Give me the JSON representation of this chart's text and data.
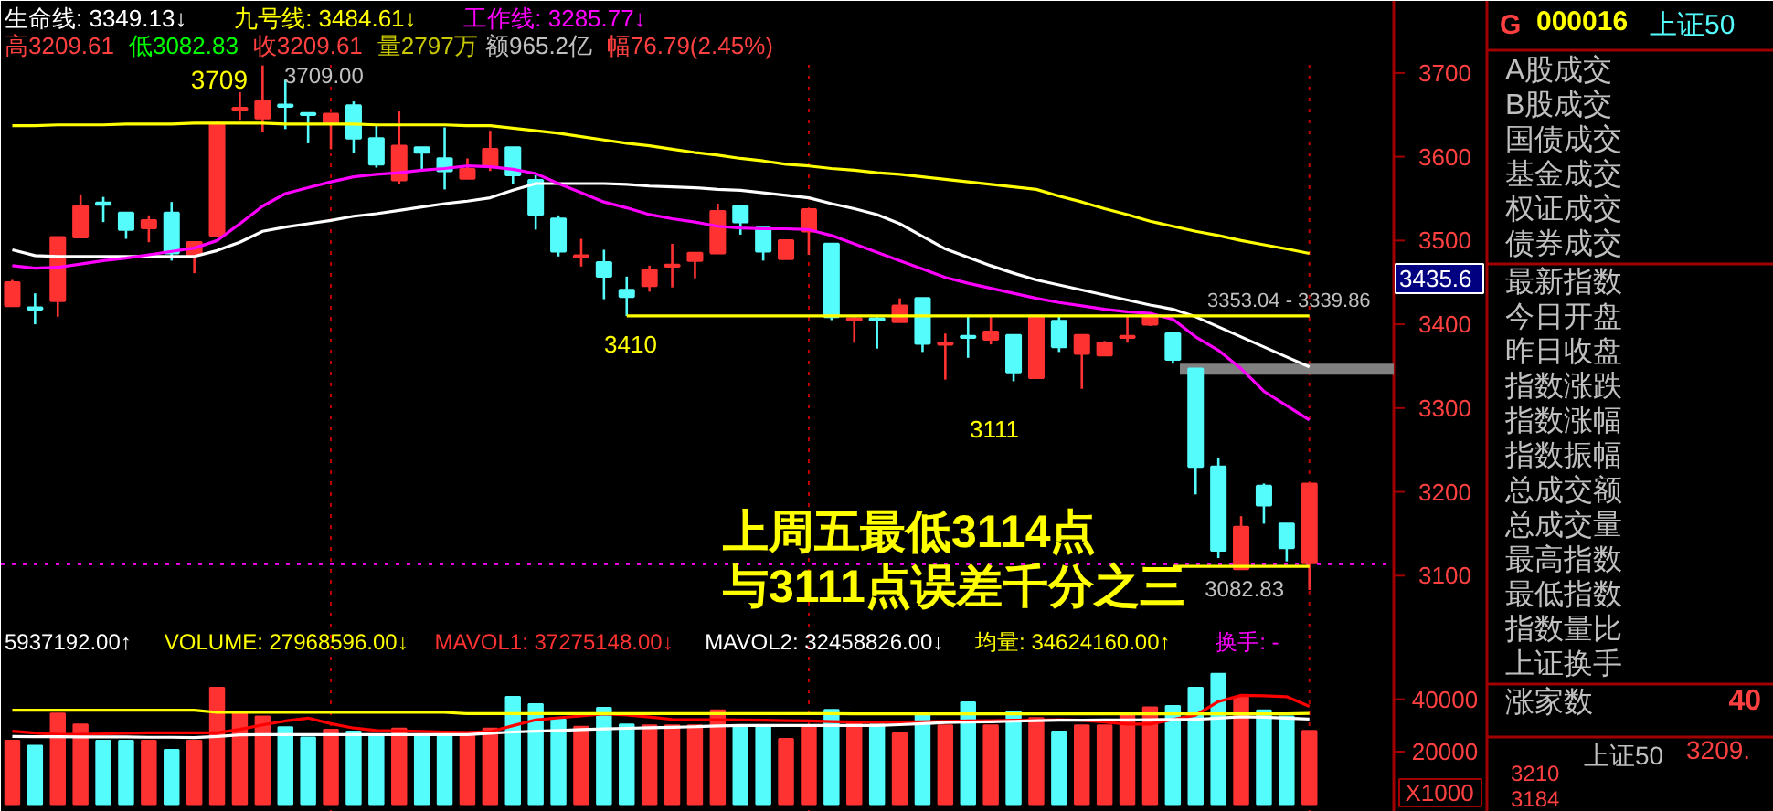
{
  "chart_data": {
    "type": "candlestick",
    "categories": [
      null,
      null,
      null,
      null,
      null,
      null,
      null,
      null,
      null,
      null,
      null,
      null,
      null,
      null,
      null,
      null,
      null,
      null,
      null,
      null,
      null,
      null,
      null,
      null,
      null,
      null,
      null,
      null,
      null,
      null,
      null,
      null,
      null,
      null,
      null,
      null,
      null,
      null,
      null,
      null,
      null,
      null,
      null,
      null,
      null,
      null,
      null,
      null,
      null,
      null,
      null,
      null,
      null,
      null,
      null,
      null,
      null,
      null
    ],
    "ohlc": [
      [
        3422,
        3453,
        3422,
        3450
      ],
      [
        3420,
        3437,
        3400,
        3418
      ],
      [
        3428,
        3504,
        3409,
        3504
      ],
      [
        3504,
        3555,
        3504,
        3541
      ],
      [
        3545,
        3552,
        3522,
        3543
      ],
      [
        3533,
        3533,
        3502,
        3513
      ],
      [
        3515,
        3530,
        3498,
        3524
      ],
      [
        3533,
        3546,
        3476,
        3485
      ],
      [
        3483,
        3498,
        3461,
        3498
      ],
      [
        3506,
        3642,
        3506,
        3640
      ],
      [
        3656,
        3677,
        3644,
        3658
      ],
      [
        3646,
        3709,
        3629,
        3666
      ],
      [
        3662,
        3692,
        3633,
        3660
      ],
      [
        3652,
        3652,
        3616,
        3650
      ],
      [
        3640,
        3651,
        3609,
        3651
      ],
      [
        3661,
        3666,
        3605,
        3622
      ],
      [
        3622,
        3637,
        3587,
        3591
      ],
      [
        3572,
        3655,
        3568,
        3613
      ],
      [
        3611,
        3611,
        3583,
        3605
      ],
      [
        3598,
        3635,
        3561,
        3583
      ],
      [
        3574,
        3598,
        3574,
        3585
      ],
      [
        3589,
        3631,
        3583,
        3609
      ],
      [
        3611,
        3611,
        3568,
        3578
      ],
      [
        3572,
        3578,
        3513,
        3531
      ],
      [
        3526,
        3530,
        3481,
        3487
      ],
      [
        3480,
        3502,
        3469,
        3482
      ],
      [
        3474,
        3489,
        3430,
        3457
      ],
      [
        3441,
        3457,
        3410,
        3433
      ],
      [
        3446,
        3470,
        3439,
        3465
      ],
      [
        3469,
        3496,
        3444,
        3471
      ],
      [
        3476,
        3485,
        3455,
        3485
      ],
      [
        3485,
        3544,
        3485,
        3535
      ],
      [
        3541,
        3541,
        3507,
        3522
      ],
      [
        3515,
        3515,
        3476,
        3487
      ],
      [
        3478,
        3500,
        3478,
        3500
      ],
      [
        3511,
        3537,
        3483,
        3537
      ],
      [
        3496,
        3496,
        3405,
        3409
      ],
      [
        3405,
        3410,
        3378,
        3407
      ],
      [
        3407,
        3410,
        3371,
        3405
      ],
      [
        3403,
        3431,
        3403,
        3422
      ],
      [
        3431,
        3431,
        3367,
        3377
      ],
      [
        3376,
        3389,
        3334,
        3378
      ],
      [
        3386,
        3410,
        3360,
        3384
      ],
      [
        3382,
        3409,
        3376,
        3391
      ],
      [
        3387,
        3387,
        3332,
        3343
      ],
      [
        3336,
        3410,
        3336,
        3410
      ],
      [
        3404,
        3410,
        3367,
        3373
      ],
      [
        3365,
        3387,
        3323,
        3387
      ],
      [
        3363,
        3380,
        3363,
        3378
      ],
      [
        3384,
        3409,
        3378,
        3386
      ],
      [
        3400,
        3411,
        3398,
        3409
      ],
      [
        3389,
        3389,
        3353,
        3358
      ],
      [
        3347,
        3347,
        3197,
        3230
      ],
      [
        3230,
        3241,
        3121,
        3130
      ],
      [
        3108,
        3171,
        3108,
        3158
      ],
      [
        3207,
        3210,
        3162,
        3184
      ],
      [
        3162,
        3162,
        3117,
        3133
      ],
      [
        3115,
        3209.61,
        3082.83,
        3209.61
      ]
    ],
    "series": [
      {
        "type": "line",
        "color": "#ffffff",
        "values": [
          3489,
          3482,
          3481,
          3481,
          3481,
          3481,
          3481,
          3481,
          3481,
          3488,
          3498,
          3511,
          3516,
          3520,
          3524,
          3529,
          3532,
          3536,
          3540,
          3544,
          3547,
          3551,
          3560,
          3568,
          3568,
          3568,
          3568,
          3567,
          3565,
          3564,
          3563,
          3561,
          3560,
          3557,
          3554,
          3551,
          3544,
          3538,
          3531,
          3520,
          3505,
          3490,
          3480,
          3470,
          3461,
          3453,
          3447,
          3441,
          3435,
          3429,
          3423,
          3418,
          3409,
          3397,
          3385,
          3373,
          3361,
          3349.13
        ]
      },
      {
        "type": "line",
        "color": "#ff00ff",
        "values": [
          3470,
          3467,
          3468,
          3472,
          3476,
          3479,
          3483,
          3487,
          3491,
          3500,
          3520,
          3541,
          3556,
          3563,
          3570,
          3576,
          3579,
          3581,
          3584,
          3586,
          3589,
          3588,
          3585,
          3580,
          3568,
          3557,
          3546,
          3539,
          3531,
          3526,
          3522,
          3517,
          3515,
          3514,
          3514,
          3513,
          3506,
          3496,
          3486,
          3476,
          3466,
          3456,
          3449,
          3443,
          3437,
          3431,
          3426,
          3422,
          3418,
          3415,
          3413,
          3406,
          3385,
          3369,
          3347,
          3320,
          3303,
          3285.77
        ]
      },
      {
        "type": "line",
        "color": "#ffff00",
        "values": [
          3637,
          3637,
          3638,
          3638,
          3638,
          3639,
          3639,
          3639,
          3640,
          3640,
          3640,
          3640,
          3639,
          3639,
          3639,
          3639,
          3638,
          3638,
          3638,
          3638,
          3637,
          3637,
          3634,
          3631,
          3628,
          3624,
          3620,
          3616,
          3613,
          3609,
          3605,
          3602,
          3598,
          3595,
          3591,
          3589,
          3586,
          3584,
          3581,
          3579,
          3576,
          3573,
          3570,
          3567,
          3564,
          3561,
          3553,
          3546,
          3538,
          3531,
          3523,
          3517,
          3511,
          3506,
          3500,
          3495,
          3490,
          3484.61
        ]
      },
      {
        "type": "line",
        "color": "#ffff00",
        "values": [
          null,
          null,
          null,
          null,
          null,
          null,
          null,
          null,
          null,
          null,
          null,
          null,
          null,
          null,
          null,
          null,
          null,
          null,
          null,
          null,
          null,
          null,
          null,
          null,
          null,
          null,
          null,
          3410,
          3410,
          3410,
          3410,
          3410,
          3410,
          3410,
          3410,
          3410,
          3410,
          3410,
          3410,
          3410,
          3410,
          3410,
          3410,
          3410,
          3410,
          3410,
          3410,
          3410,
          3410,
          3410,
          3410,
          3410,
          3410,
          3410,
          3410,
          3410,
          3410,
          3410
        ]
      },
      {
        "type": "line",
        "color": "#ffff00",
        "values": [
          null,
          null,
          null,
          null,
          null,
          null,
          null,
          null,
          null,
          null,
          null,
          null,
          null,
          null,
          null,
          null,
          null,
          null,
          null,
          null,
          null,
          null,
          null,
          null,
          null,
          null,
          null,
          null,
          null,
          null,
          null,
          null,
          null,
          null,
          null,
          null,
          null,
          null,
          null,
          null,
          null,
          null,
          null,
          null,
          null,
          null,
          null,
          null,
          null,
          null,
          null,
          3111,
          3111,
          3111,
          3111,
          3111,
          3111,
          3111
        ]
      },
      {
        "type": "bar",
        "axis": "y2",
        "values": [
          24200,
          22300,
          34600,
          30400,
          24200,
          24200,
          24200,
          20700,
          24200,
          44400,
          34600,
          33400,
          29300,
          25400,
          28400,
          27700,
          26500,
          28800,
          26500,
          26500,
          26500,
          28800,
          40900,
          38100,
          32300,
          29500,
          36700,
          30400,
          30000,
          30000,
          30000,
          35800,
          30000,
          30000,
          24900,
          30000,
          36000,
          31100,
          30400,
          27000,
          34100,
          30000,
          38800,
          30000,
          35300,
          32800,
          27700,
          30000,
          30000,
          33900,
          36900,
          37400,
          44400,
          49700,
          40900,
          35800,
          33400,
          27969
        ],
        "colors": [
          "#ff3232",
          "#54fcfc",
          "#ff3232",
          "#ff3232",
          "#54fcfc",
          "#54fcfc",
          "#ff3232",
          "#54fcfc",
          "#ff3232",
          "#ff3232",
          "#ff3232",
          "#ff3232",
          "#54fcfc",
          "#54fcfc",
          "#ff3232",
          "#54fcfc",
          "#54fcfc",
          "#ff3232",
          "#54fcfc",
          "#54fcfc",
          "#ff3232",
          "#ff3232",
          "#54fcfc",
          "#54fcfc",
          "#54fcfc",
          "#ff3232",
          "#54fcfc",
          "#54fcfc",
          "#ff3232",
          "#ff3232",
          "#ff3232",
          "#ff3232",
          "#54fcfc",
          "#54fcfc",
          "#ff3232",
          "#ff3232",
          "#54fcfc",
          "#ff3232",
          "#54fcfc",
          "#ff3232",
          "#54fcfc",
          "#ff3232",
          "#54fcfc",
          "#ff3232",
          "#54fcfc",
          "#ff3232",
          "#54fcfc",
          "#ff3232",
          "#ff3232",
          "#ff3232",
          "#ff3232",
          "#54fcfc",
          "#54fcfc",
          "#54fcfc",
          "#ff3232",
          "#54fcfc",
          "#54fcfc",
          "#ff3232"
        ]
      },
      {
        "type": "line",
        "axis": "y2",
        "color": "#ff0000",
        "values": [
          27800,
          27100,
          26600,
          26600,
          26800,
          27000,
          27200,
          27200,
          27200,
          27200,
          28500,
          30200,
          31700,
          32800,
          30700,
          29000,
          28100,
          27900,
          27700,
          27500,
          27400,
          27600,
          29900,
          32100,
          32900,
          33600,
          34400,
          34000,
          33200,
          32300,
          32200,
          32200,
          32100,
          32000,
          31800,
          31700,
          31500,
          31300,
          31200,
          31300,
          31400,
          31600,
          31700,
          31800,
          32000,
          32100,
          32200,
          32000,
          31300,
          30500,
          30500,
          32300,
          33900,
          39100,
          41500,
          41300,
          41000,
          37275
        ]
      },
      {
        "type": "line",
        "axis": "y2",
        "color": "#ffffff",
        "values": [
          25800,
          25700,
          25700,
          25600,
          25600,
          25600,
          25500,
          25500,
          25400,
          25800,
          26400,
          26500,
          26500,
          26500,
          26500,
          26500,
          26500,
          26500,
          26500,
          26500,
          26500,
          27000,
          27500,
          27800,
          28100,
          28400,
          28700,
          28900,
          29100,
          29300,
          29500,
          29800,
          30000,
          30000,
          30000,
          30000,
          30000,
          30000,
          30000,
          30300,
          30700,
          31100,
          31300,
          31400,
          31600,
          31800,
          32000,
          32000,
          32100,
          32100,
          32200,
          32300,
          32300,
          32800,
          33300,
          33100,
          32800,
          32459
        ]
      },
      {
        "type": "line",
        "axis": "y2",
        "color": "#ffff00",
        "values": [
          35800,
          35800,
          35800,
          35800,
          35800,
          35800,
          35800,
          35800,
          35800,
          35000,
          35000,
          35000,
          35000,
          35000,
          35000,
          35000,
          35000,
          35000,
          35000,
          35000,
          34500,
          34500,
          34500,
          34500,
          34500,
          34500,
          34500,
          34500,
          34500,
          34500,
          34500,
          34500,
          34500,
          34500,
          34500,
          34500,
          34500,
          34400,
          34400,
          34400,
          34400,
          34400,
          34400,
          34400,
          34400,
          34400,
          34400,
          34400,
          34400,
          34400,
          34400,
          34400,
          34400,
          34400,
          34400,
          34400,
          34400,
          34624
        ]
      }
    ],
    "ylim": [
      2818,
      3786
    ],
    "yticks": [
      3100,
      3200,
      3300,
      3400,
      3500,
      3600,
      3700
    ],
    "y2lim": [
      -3000,
      306560
    ],
    "y2ticks": [
      20000,
      40000
    ],
    "grid": "x",
    "ref_lines": [
      {
        "axis": "y",
        "value": 3114,
        "color": "#ff00ff",
        "line_style": "dotted"
      }
    ],
    "bands": [
      {
        "axis": "y",
        "from": 3339.86,
        "to": 3353.04,
        "color": "#808080"
      }
    ],
    "annotations": [
      "生命线: 3349.13↓",
      "九号线: 3484.61↓",
      "工作线: 3285.77↓",
      "高3209.61",
      "低3082.83",
      "收3209.61",
      "量2797万",
      "额965.2亿",
      "幅76.79(2.45%)",
      "3709",
      "3709.00",
      {
        "text": "3410",
        "y": 3410
      },
      "3111",
      {
        "text": "3353.04 - 3339.86",
        "y": 3353.04
      },
      "3082.83",
      "上周五最低3114点",
      "与3111点误差千分之三",
      "3435.6",
      "5937192.00↑",
      "VOLUME: 27968596.00↓",
      "MAVOL1: 37275148.00↓",
      "MAVOL2: 32458826.00↓",
      "均量: 34624160.00↑",
      "换手: -",
      "G",
      "000016",
      "上证50",
      "A股成交",
      "B股成交",
      "国债成交",
      "基金成交",
      "权证成交",
      "债券成交",
      "最新指数",
      "今日开盘",
      "昨日收盘",
      "指数涨跌",
      "指数涨幅",
      "指数振幅",
      "总成交额",
      "总成交量",
      "最高指数",
      "最低指数",
      "指数量比",
      "上证换手",
      "涨家数",
      "40",
      "上证50",
      "3209.",
      "3210",
      "3184",
      "X1000"
    ]
  }
}
